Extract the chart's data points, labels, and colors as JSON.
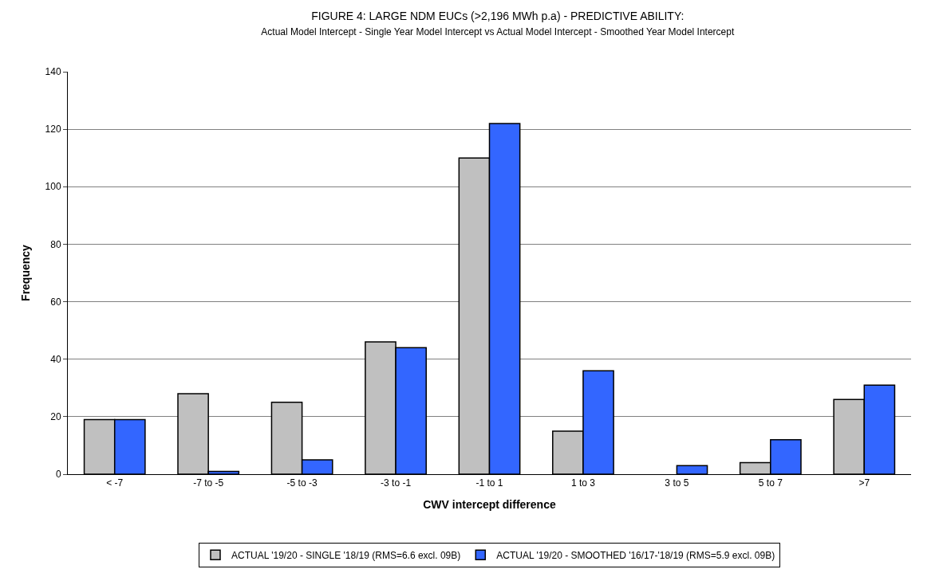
{
  "chart_data": {
    "type": "bar",
    "title": "FIGURE 4: LARGE NDM EUCs (>2,196 MWh p.a) - PREDICTIVE ABILITY:",
    "subtitle": "Actual Model Intercept - Single Year Model Intercept vs Actual Model Intercept - Smoothed Year Model Intercept",
    "xlabel": "CWV intercept difference",
    "ylabel": "Frequency",
    "categories": [
      "< -7",
      "-7 to -5",
      "-5 to -3",
      "-3 to -1",
      "-1 to 1",
      "1 to 3",
      "3 to 5",
      "5 to 7",
      ">7"
    ],
    "series": [
      {
        "name": "ACTUAL '19/20 - SINGLE '18/19 (RMS=6.6 excl. 09B)",
        "color": "#c0c0c0",
        "values": [
          19,
          28,
          25,
          46,
          110,
          15,
          0,
          4,
          26
        ]
      },
      {
        "name": "ACTUAL '19/20 - SMOOTHED '16/17-'18/19 (RMS=5.9 excl. 09B)",
        "color": "#3366ff",
        "values": [
          19,
          1,
          5,
          44,
          122,
          36,
          3,
          12,
          31
        ]
      }
    ],
    "ylim": [
      0,
      140
    ],
    "yticks": [
      0,
      20,
      40,
      60,
      80,
      100,
      120,
      140
    ],
    "grid": "y",
    "legend": "bottom"
  }
}
